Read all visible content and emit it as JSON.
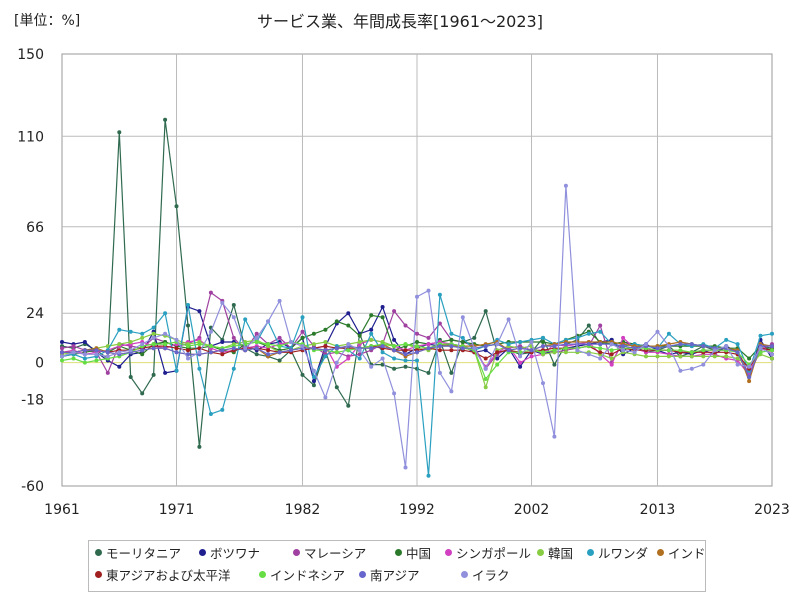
{
  "chart_data": {
    "type": "line",
    "title": "サービス業、年間成長率[1961～2023]",
    "unit_label": "[単位：%]",
    "xlabel": "",
    "ylabel": "",
    "xlim": [
      1961,
      2023
    ],
    "ylim": [
      -60,
      150
    ],
    "x_ticks": [
      1961,
      1971,
      1982,
      1992,
      2002,
      2013,
      2023
    ],
    "y_ticks": [
      150,
      110,
      66,
      24,
      0,
      -18,
      -60
    ],
    "grid": true,
    "legend_position": "bottom",
    "series": [
      {
        "name": "モーリタニア",
        "color": "#2f6a4f",
        "start": 1961,
        "values": [
          8,
          7,
          9,
          6,
          2,
          112,
          -7,
          -15,
          -6,
          118,
          76,
          18,
          -41,
          17,
          11,
          28,
          7,
          4,
          3,
          1,
          6,
          -6,
          -11,
          6,
          -12,
          -21,
          14,
          -1,
          -1,
          -3,
          -2,
          -3,
          -5,
          11,
          -5,
          10,
          12,
          25,
          5,
          6,
          4,
          5,
          12,
          -1,
          9,
          11,
          18,
          9,
          11,
          6,
          8,
          5,
          6,
          8,
          3,
          5,
          8,
          6,
          7,
          5,
          -7,
          8,
          7
        ]
      },
      {
        "name": "ボツワナ",
        "color": "#1f1f8f",
        "start": 1961,
        "values": [
          10,
          9,
          10,
          5,
          1,
          -2,
          4,
          5,
          15,
          -5,
          -4,
          27,
          25,
          8,
          10,
          10,
          8,
          6,
          9,
          10,
          7,
          12,
          -9,
          8,
          19,
          24,
          14,
          16,
          27,
          11,
          4,
          7,
          9,
          8,
          9,
          8,
          5,
          6,
          2,
          7,
          -2,
          6,
          4,
          6,
          7,
          8,
          9,
          10,
          11,
          4,
          7,
          9,
          6,
          4,
          5,
          4,
          6,
          4,
          8,
          5,
          -7,
          11,
          2
        ]
      },
      {
        "name": "マレーシア",
        "color": "#a040a0",
        "start": 1961,
        "values": [
          7,
          8,
          6,
          5,
          -5,
          9,
          8,
          7,
          12,
          10,
          8,
          9,
          12,
          34,
          30,
          12,
          6,
          14,
          9,
          12,
          7,
          15,
          8,
          4,
          5,
          3,
          4,
          6,
          9,
          25,
          18,
          14,
          12,
          19,
          11,
          10,
          8,
          -3,
          4,
          7,
          8,
          6,
          6,
          5,
          6,
          7,
          8,
          18,
          0,
          10,
          8,
          7,
          6,
          6,
          5,
          5,
          6,
          6,
          6,
          6,
          -6,
          6,
          9
        ]
      },
      {
        "name": "中国",
        "color": "#2b7a2b",
        "start": 1961,
        "values": [
          3,
          4,
          5,
          6,
          5,
          8,
          6,
          4,
          9,
          10,
          8,
          7,
          7,
          8,
          6,
          5,
          9,
          10,
          8,
          6,
          7,
          12,
          14,
          16,
          20,
          18,
          13,
          23,
          22,
          6,
          8,
          10,
          9,
          10,
          11,
          10,
          9,
          8,
          9,
          10,
          10,
          10,
          10,
          9,
          11,
          13,
          15,
          10,
          9,
          10,
          9,
          8,
          8,
          8,
          8,
          8,
          8,
          8,
          7,
          7,
          2,
          8,
          6
        ]
      },
      {
        "name": "シンガポール",
        "color": "#d040c0",
        "start": 1961,
        "values": [
          5,
          6,
          4,
          5,
          6,
          8,
          9,
          10,
          8,
          7,
          9,
          10,
          11,
          7,
          5,
          6,
          7,
          8,
          7,
          9,
          10,
          8,
          7,
          8,
          -2,
          2,
          9,
          11,
          10,
          8,
          6,
          8,
          9,
          10,
          9,
          8,
          6,
          -2,
          5,
          8,
          0,
          3,
          4,
          9,
          8,
          9,
          10,
          4,
          -1,
          12,
          7,
          5,
          5,
          4,
          3,
          3,
          4,
          4,
          2,
          1,
          -6,
          9,
          4
        ]
      },
      {
        "name": "韓国",
        "color": "#88cc44",
        "start": 1961,
        "values": [
          4,
          5,
          6,
          7,
          8,
          9,
          10,
          12,
          14,
          13,
          11,
          9,
          10,
          8,
          7,
          9,
          10,
          11,
          8,
          5,
          6,
          8,
          9,
          10,
          8,
          9,
          10,
          11,
          10,
          8,
          9,
          7,
          6,
          8,
          8,
          7,
          6,
          -12,
          6,
          8,
          7,
          8,
          4,
          5,
          5,
          5,
          5,
          4,
          2,
          5,
          4,
          3,
          3,
          3,
          3,
          3,
          3,
          3,
          3,
          2,
          -2,
          4,
          2
        ]
      },
      {
        "name": "ルワンダ",
        "color": "#2aa0c0",
        "start": 1961,
        "values": [
          3,
          4,
          2,
          3,
          6,
          16,
          15,
          14,
          17,
          24,
          -4,
          28,
          -3,
          -25,
          -23,
          -3,
          21,
          10,
          20,
          8,
          7,
          22,
          -7,
          3,
          8,
          6,
          2,
          14,
          5,
          2,
          1,
          1,
          -55,
          33,
          14,
          12,
          6,
          8,
          11,
          9,
          10,
          11,
          12,
          9,
          11,
          12,
          14,
          15,
          9,
          8,
          9,
          8,
          7,
          14,
          9,
          8,
          9,
          7,
          11,
          9,
          -4,
          13,
          14
        ]
      },
      {
        "name": "インド",
        "color": "#b07020",
        "start": 1961,
        "values": [
          5,
          5,
          6,
          7,
          5,
          4,
          5,
          6,
          7,
          7,
          5,
          4,
          4,
          5,
          6,
          7,
          6,
          7,
          3,
          5,
          6,
          7,
          7,
          6,
          7,
          8,
          7,
          7,
          9,
          6,
          3,
          5,
          7,
          9,
          8,
          8,
          8,
          9,
          10,
          6,
          7,
          6,
          8,
          9,
          10,
          10,
          10,
          10,
          10,
          9,
          8,
          8,
          8,
          9,
          10,
          9,
          8,
          7,
          7,
          6,
          -9,
          9,
          8
        ]
      },
      {
        "name": "東アジアおよび太平洋",
        "color": "#a02020",
        "start": 1961,
        "values": [
          5,
          5,
          6,
          6,
          5,
          6,
          6,
          7,
          8,
          8,
          7,
          6,
          7,
          5,
          4,
          6,
          7,
          7,
          6,
          5,
          5,
          6,
          7,
          8,
          7,
          7,
          7,
          8,
          7,
          6,
          6,
          6,
          7,
          6,
          6,
          6,
          5,
          2,
          5,
          6,
          5,
          5,
          6,
          7,
          7,
          7,
          8,
          5,
          4,
          7,
          6,
          6,
          6,
          6,
          5,
          5,
          5,
          5,
          5,
          4,
          -3,
          7,
          6
        ]
      },
      {
        "name": "インドネシア",
        "color": "#66dd44",
        "start": 1961,
        "values": [
          1,
          2,
          0,
          1,
          2,
          3,
          5,
          8,
          9,
          9,
          10,
          8,
          9,
          8,
          7,
          8,
          9,
          10,
          9,
          8,
          10,
          9,
          6,
          6,
          5,
          6,
          7,
          8,
          9,
          8,
          9,
          8,
          7,
          9,
          9,
          8,
          6,
          -8,
          -1,
          5,
          5,
          6,
          5,
          6,
          7,
          7,
          8,
          7,
          6,
          7,
          7,
          7,
          6,
          6,
          6,
          5,
          6,
          6,
          6,
          5,
          -1,
          5,
          6
        ]
      },
      {
        "name": "南アジア",
        "color": "#6666cc",
        "start": 1961,
        "values": [
          5,
          5,
          6,
          6,
          5,
          4,
          5,
          6,
          7,
          7,
          5,
          4,
          4,
          5,
          6,
          7,
          6,
          7,
          4,
          5,
          6,
          7,
          7,
          6,
          7,
          8,
          7,
          7,
          8,
          6,
          4,
          5,
          7,
          8,
          8,
          7,
          7,
          8,
          9,
          6,
          7,
          6,
          8,
          8,
          9,
          9,
          9,
          9,
          9,
          8,
          7,
          8,
          7,
          8,
          9,
          9,
          8,
          7,
          7,
          5,
          -7,
          8,
          8
        ]
      },
      {
        "name": "イラク",
        "color": "#9090dd",
        "start": 1961,
        "values": [
          3,
          5,
          4,
          4,
          3,
          5,
          6,
          9,
          12,
          14,
          11,
          2,
          5,
          15,
          29,
          22,
          7,
          12,
          20,
          30,
          10,
          8,
          -4,
          -17,
          0,
          9,
          6,
          -2,
          2,
          -15,
          -51,
          32,
          35,
          -5,
          -14,
          22,
          7,
          -3,
          9,
          21,
          3,
          10,
          -10,
          -36,
          86,
          6,
          4,
          2,
          9,
          6,
          5,
          9,
          15,
          8,
          -4,
          -3,
          -1,
          6,
          8,
          -1,
          -2,
          7,
          4
        ]
      }
    ]
  }
}
